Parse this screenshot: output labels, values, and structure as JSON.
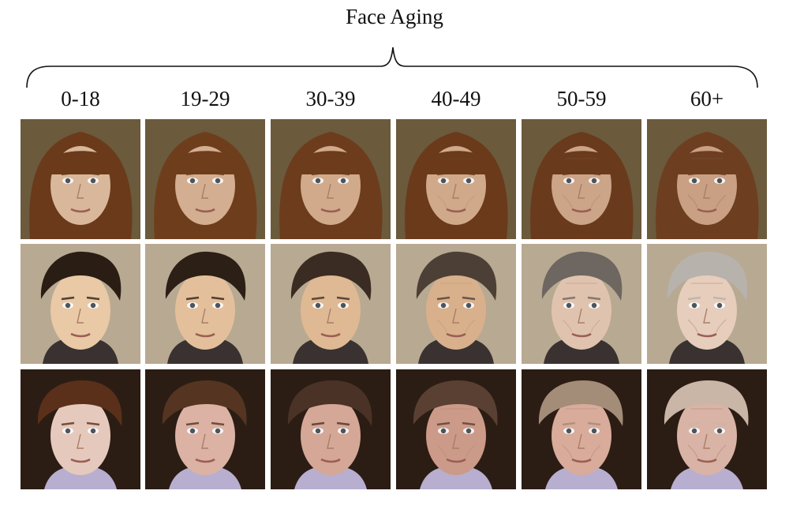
{
  "title": "Face Aging",
  "age_groups": [
    "0-18",
    "19-29",
    "30-39",
    "40-49",
    "50-59",
    "60+"
  ],
  "subjects": [
    {
      "id": "woman",
      "bg": "#6b5a3c",
      "hair": [
        "#6a3a1a",
        "#6e3e1c",
        "#6c3c1c",
        "#6a3a1a",
        "#6a3a1c",
        "#6e3e20"
      ],
      "skin": [
        "#d9b79a",
        "#d4ae90",
        "#d1aa8c",
        "#cfa98a",
        "#cca487",
        "#c9a083"
      ]
    },
    {
      "id": "young-man",
      "bg": "#b8a992",
      "hair": [
        "#2a1d14",
        "#2c1f16",
        "#3a2c22",
        "#4c4036",
        "#6e6660",
        "#b7b2ab"
      ],
      "skin": [
        "#e9c9a6",
        "#e3c09b",
        "#dfb993",
        "#d9b08c",
        "#e0c3ae",
        "#e6cdbc"
      ]
    },
    {
      "id": "bearded-man",
      "bg": "#2b1d14",
      "hair": [
        "#5a301a",
        "#553422",
        "#4a3226",
        "#5a4032",
        "#a38c78",
        "#c9b6a6"
      ],
      "skin": [
        "#e6c9bd",
        "#dbb2a4",
        "#d5a796",
        "#cc9a88",
        "#d8ab9a",
        "#d9b3a5"
      ]
    }
  ]
}
